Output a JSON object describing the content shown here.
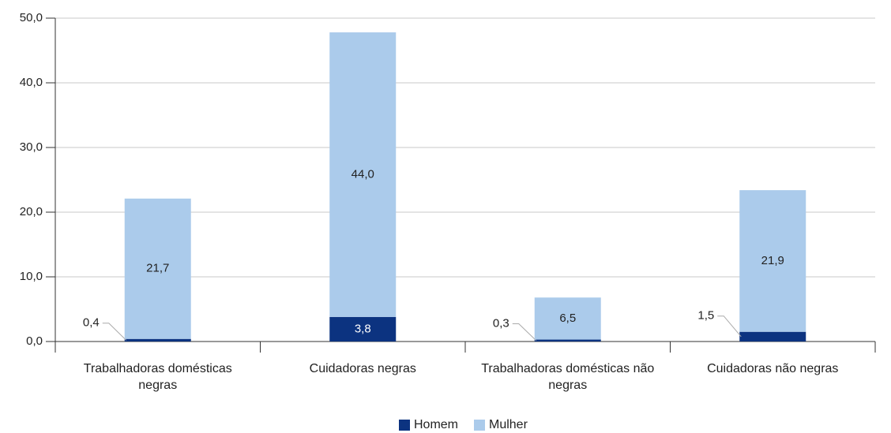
{
  "chart_data": {
    "type": "stacked_bar",
    "categories": [
      "Trabalhadoras domésticas negras",
      "Cuidadoras negras",
      "Trabalhadoras domésticas não negras",
      "Cuidadoras não negras"
    ],
    "series": [
      {
        "name": "Homem",
        "color": "#0c3380",
        "values": [
          0.4,
          3.8,
          0.3,
          1.5
        ],
        "value_labels": [
          "0,4",
          "3,8",
          "0,3",
          "1,5"
        ]
      },
      {
        "name": "Mulher",
        "color": "#abcbeb",
        "values": [
          21.7,
          44.0,
          6.5,
          21.9
        ],
        "value_labels": [
          "21,7",
          "44,0",
          "6,5",
          "21,9"
        ]
      }
    ],
    "ylim": [
      0,
      50
    ],
    "yticks": [
      {
        "value": 0,
        "label": "0,0"
      },
      {
        "value": 10,
        "label": "10,0"
      },
      {
        "value": 20,
        "label": "20,0"
      },
      {
        "value": 30,
        "label": "30,0"
      },
      {
        "value": 40,
        "label": "40,0"
      },
      {
        "value": 50,
        "label": "50,0"
      }
    ],
    "grid": true,
    "legend": "bottom"
  }
}
